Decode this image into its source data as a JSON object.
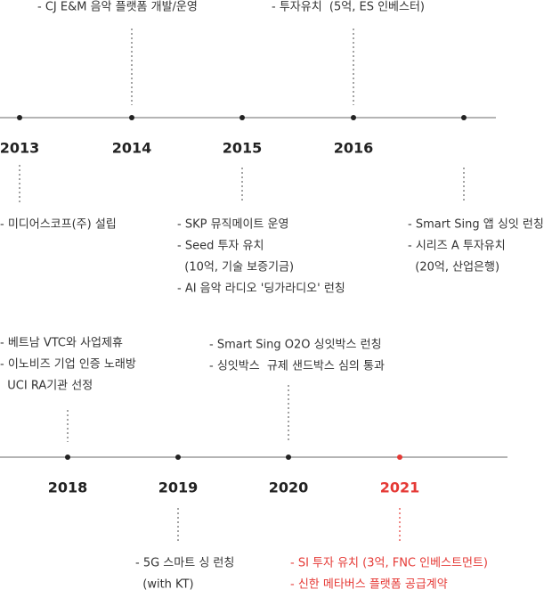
{
  "timelines": [
    {
      "milestones": [
        {
          "year": "2013",
          "notes_below": [
            "- 미디어스코프(주) 설립"
          ]
        },
        {
          "year": "2014",
          "notes_above": [
            "- CJ E&M 음악 플랫폼 개발/운영"
          ]
        },
        {
          "year": "2015",
          "notes_below": [
            "- SKP 뮤직메이트 운영",
            "- Seed 투자 유치",
            "  (10억, 기술 보증기금)",
            "- AI 음악 라디오 '딩가라디오' 런칭"
          ]
        },
        {
          "year": "2016",
          "notes_above": [
            "- 투자유치  (5억, ES 인베스터)"
          ]
        },
        {
          "notes_below": [
            "- Smart Sing 앱 싱잇 런칭",
            "- 시리즈 A 투자유치",
            "  (20억, 산업은행)"
          ]
        }
      ]
    },
    {
      "milestones": [
        {
          "year": "2018",
          "notes_above": [
            "- 베트남 VTC와 사업제휴",
            "- 이노비즈 기업 인증 노래방",
            "  UCI RA기관 선정"
          ]
        },
        {
          "year": "2019",
          "notes_below": [
            "- 5G 스마트 싱 런칭",
            "  (with KT)"
          ]
        },
        {
          "year": "2020",
          "notes_above": [
            "- Smart Sing O2O 싱잇박스 런칭",
            "- 싱잇박스  규제 샌드박스 심의 통과"
          ]
        },
        {
          "year": "2021",
          "notes_below": [
            "- SI 투자 유치 (3억, FNC 인베스트먼트)",
            "- 신한 메타버스 플랫폼 공급계약"
          ],
          "highlight": true
        }
      ]
    }
  ]
}
